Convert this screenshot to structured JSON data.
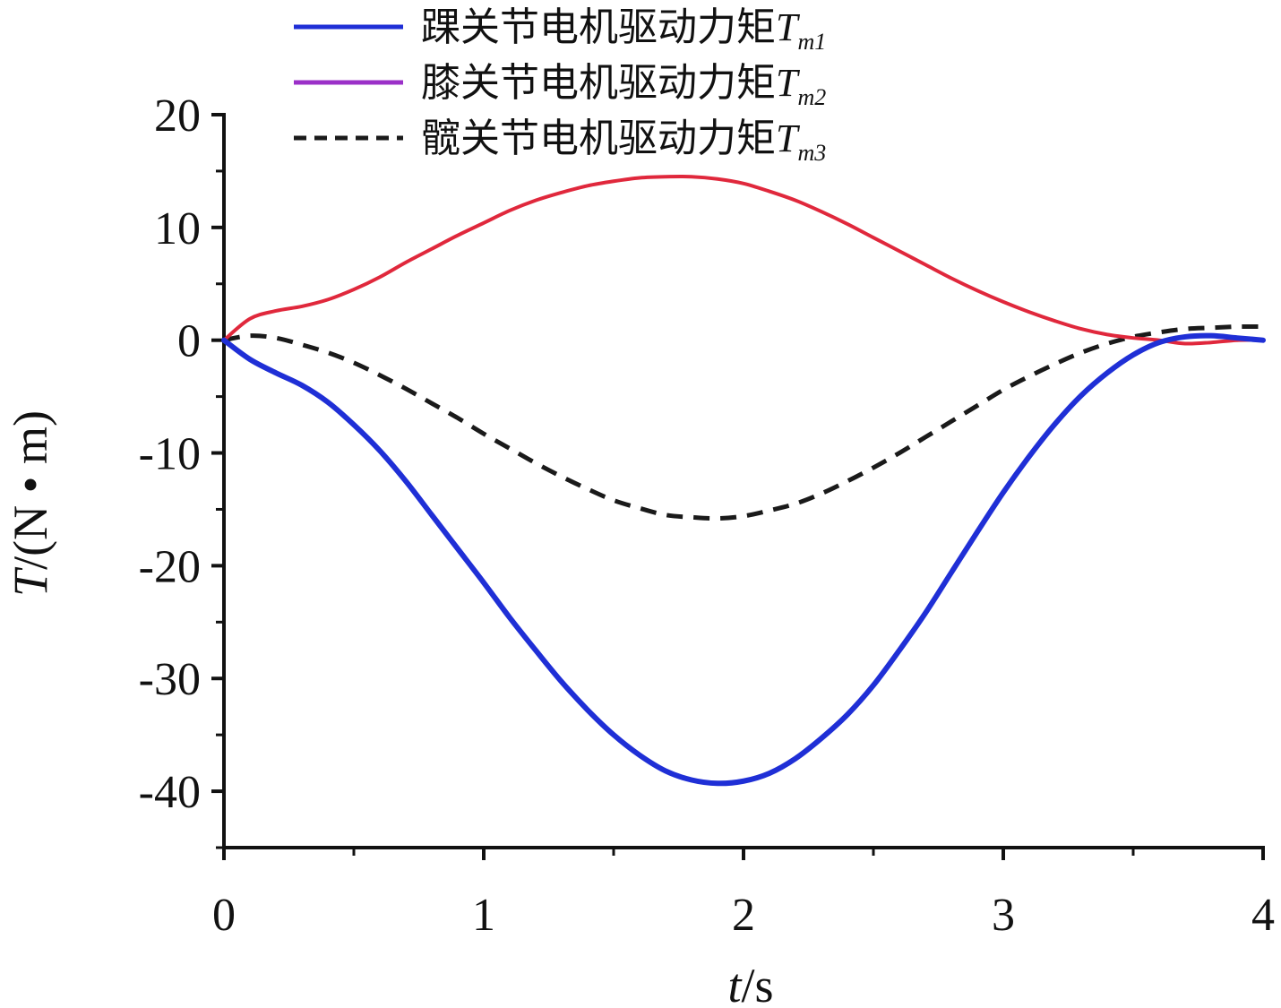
{
  "chart_data": {
    "type": "line",
    "xlabel_var": "t",
    "xlabel_unit": "/s",
    "ylabel_var": "T",
    "ylabel_unit": "/(N • m)",
    "xlim": [
      0,
      4
    ],
    "ylim": [
      -45,
      20
    ],
    "xticks": [
      0,
      1,
      2,
      3,
      4
    ],
    "yticks": [
      20,
      10,
      0,
      -10,
      -20,
      -30,
      -40
    ],
    "xtick_labels": [
      "0",
      "1",
      "2",
      "3",
      "4"
    ],
    "ytick_labels": [
      "20",
      "10",
      "0",
      "-10",
      "-20",
      "-30",
      "-40"
    ],
    "grid": false,
    "legend_position": "top-left, above plot",
    "series": [
      {
        "name": "踝关节电机驱动力矩T_m1",
        "label": "踝关节电机驱动力矩",
        "symbol": "T",
        "subscript": "m1",
        "color": "#1f2fd6",
        "style": "solid",
        "x": [
          0,
          0.1,
          0.2,
          0.3,
          0.4,
          0.5,
          0.6,
          0.7,
          0.8,
          0.9,
          1.0,
          1.1,
          1.2,
          1.3,
          1.4,
          1.5,
          1.6,
          1.7,
          1.8,
          1.9,
          2.0,
          2.1,
          2.2,
          2.3,
          2.4,
          2.5,
          2.6,
          2.7,
          2.8,
          2.9,
          3.0,
          3.1,
          3.2,
          3.3,
          3.4,
          3.5,
          3.6,
          3.7,
          3.8,
          3.9,
          4.0
        ],
        "y": [
          0,
          -1.7,
          -2.9,
          -4.0,
          -5.5,
          -7.5,
          -9.8,
          -12.5,
          -15.5,
          -18.5,
          -21.5,
          -24.6,
          -27.5,
          -30.3,
          -32.8,
          -35.0,
          -36.8,
          -38.2,
          -39.0,
          -39.3,
          -39.1,
          -38.4,
          -37.1,
          -35.3,
          -33.2,
          -30.6,
          -27.5,
          -24.2,
          -20.6,
          -17.0,
          -13.5,
          -10.3,
          -7.4,
          -4.9,
          -2.9,
          -1.3,
          -0.2,
          0.3,
          0.4,
          0.2,
          0.0
        ]
      },
      {
        "name": "膝关节电机驱动力矩T_m2",
        "label": "膝关节电机驱动力矩",
        "symbol": "T",
        "subscript": "m2",
        "color": "#e0283c",
        "style": "solid",
        "x": [
          0,
          0.1,
          0.2,
          0.3,
          0.4,
          0.5,
          0.6,
          0.7,
          0.8,
          0.9,
          1.0,
          1.1,
          1.2,
          1.3,
          1.4,
          1.5,
          1.6,
          1.7,
          1.8,
          1.9,
          2.0,
          2.1,
          2.2,
          2.3,
          2.4,
          2.5,
          2.6,
          2.7,
          2.8,
          2.9,
          3.0,
          3.1,
          3.2,
          3.3,
          3.4,
          3.5,
          3.6,
          3.7,
          3.8,
          3.9,
          4.0
        ],
        "y": [
          0,
          1.9,
          2.6,
          3.0,
          3.6,
          4.5,
          5.6,
          6.9,
          8.1,
          9.3,
          10.4,
          11.5,
          12.4,
          13.1,
          13.7,
          14.1,
          14.4,
          14.5,
          14.5,
          14.3,
          13.9,
          13.2,
          12.4,
          11.4,
          10.3,
          9.1,
          7.9,
          6.7,
          5.5,
          4.4,
          3.4,
          2.5,
          1.7,
          1.0,
          0.5,
          0.2,
          0.0,
          -0.3,
          -0.2,
          0.0,
          0.0
        ]
      },
      {
        "name": "髋关节电机驱动力矩T_m3",
        "label": "髋关节电机驱动力矩",
        "symbol": "T",
        "subscript": "m3",
        "color": "#1a1a1a",
        "style": "dashed",
        "x": [
          0,
          0.1,
          0.2,
          0.3,
          0.4,
          0.5,
          0.6,
          0.7,
          0.8,
          0.9,
          1.0,
          1.1,
          1.2,
          1.3,
          1.4,
          1.5,
          1.6,
          1.7,
          1.8,
          1.9,
          2.0,
          2.1,
          2.2,
          2.3,
          2.4,
          2.5,
          2.6,
          2.7,
          2.8,
          2.9,
          3.0,
          3.1,
          3.2,
          3.3,
          3.4,
          3.5,
          3.6,
          3.7,
          3.8,
          3.9,
          4.0
        ],
        "y": [
          0,
          0.4,
          0.2,
          -0.4,
          -1.1,
          -2.0,
          -3.1,
          -4.3,
          -5.6,
          -6.9,
          -8.3,
          -9.6,
          -10.9,
          -12.1,
          -13.2,
          -14.2,
          -14.9,
          -15.5,
          -15.7,
          -15.8,
          -15.6,
          -15.1,
          -14.5,
          -13.6,
          -12.5,
          -11.3,
          -10.0,
          -8.6,
          -7.2,
          -5.8,
          -4.4,
          -3.2,
          -2.1,
          -1.1,
          -0.3,
          0.3,
          0.7,
          1.0,
          1.1,
          1.2,
          1.2
        ]
      }
    ]
  }
}
